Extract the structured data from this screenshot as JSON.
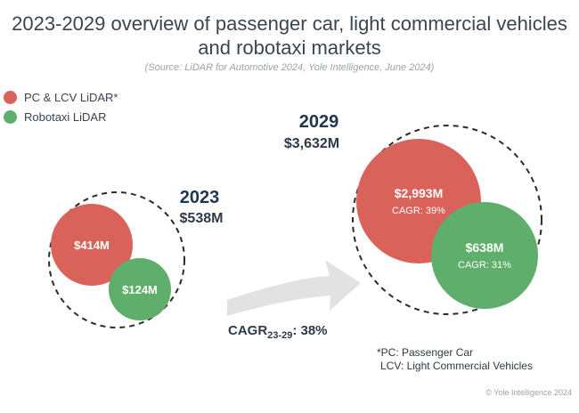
{
  "title": {
    "line1": "2023-2029 overview of passenger car, light commercial vehicles",
    "line2": "and robotaxi markets"
  },
  "source": "(Source: LiDAR for Automotive 2024, Yole Intelligence, June 2024)",
  "legend": [
    {
      "label": "PC & LCV LiDAR*",
      "color": "#d9625a"
    },
    {
      "label": "Robotaxi LiDAR",
      "color": "#5fae6b"
    }
  ],
  "footnote": {
    "line1": "*PC: Passenger Car",
    "line2": "LCV: Light Commercial Vehicles"
  },
  "copyright": "© Yole Intelligence 2024",
  "colors": {
    "pc_lcv": "#d9625a",
    "robotaxi": "#5fae6b",
    "year_label": "#1f3550",
    "arrow": "#e2e2e2",
    "title": "#3a4552"
  },
  "chart_data": {
    "type": "bubble",
    "title": "2023-2029 overview of passenger car, light commercial vehicles and robotaxi markets",
    "unit": "$M",
    "years": [
      {
        "year": "2023",
        "total_label": "$538M",
        "total": 538,
        "segments": [
          {
            "name": "PC & LCV LiDAR",
            "value": 414,
            "label": "$414M",
            "cagr": ""
          },
          {
            "name": "Robotaxi LiDAR",
            "value": 124,
            "label": "$124M",
            "cagr": ""
          }
        ]
      },
      {
        "year": "2029",
        "total_label": "$3,632M",
        "total": 3632,
        "segments": [
          {
            "name": "PC & LCV LiDAR",
            "value": 2993,
            "label": "$2,993M",
            "cagr": "CAGR: 39%"
          },
          {
            "name": "Robotaxi LiDAR",
            "value": 638,
            "label": "$638M",
            "cagr": "CAGR: 31%"
          }
        ]
      }
    ],
    "overall_cagr": {
      "prefix": "CAGR",
      "subscript": "23-29",
      "suffix": ": 38%"
    }
  }
}
